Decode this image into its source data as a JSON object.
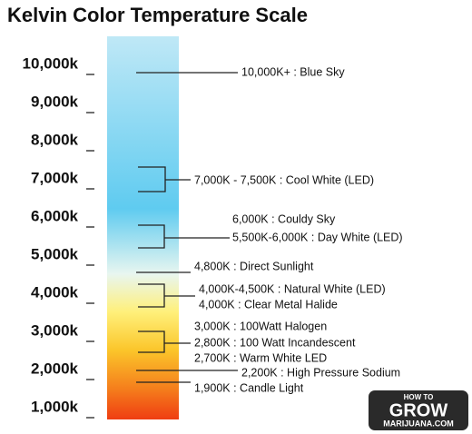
{
  "title": "Kelvin Color Temperature Scale",
  "scale": {
    "ticks": [
      "10,000k",
      "9,000k",
      "8,000k",
      "7,000k",
      "6,000k",
      "5,000k",
      "4,000k",
      "3,000k",
      "2,000k",
      "1,000k"
    ]
  },
  "annotations": [
    {
      "lines": [
        "10,000K+ : Blue Sky"
      ]
    },
    {
      "lines": [
        "7,000K - 7,500K : Cool White (LED)"
      ]
    },
    {
      "lines": [
        "6,000K : Couldy Sky",
        "5,500K-6,000K : Day White (LED)"
      ]
    },
    {
      "lines": [
        "4,800K : Direct Sunlight"
      ]
    },
    {
      "lines": [
        "4,000K-4,500K : Natural White (LED)",
        "4,000K : Clear Metal Halide"
      ]
    },
    {
      "lines": [
        "3,000K : 100Watt Halogen",
        "2,800K : 100 Watt Incandescent",
        "2,700K : Warm White LED"
      ]
    },
    {
      "lines": [
        "2,200K : High Pressure Sodium"
      ]
    },
    {
      "lines": [
        "1,900K : Candle Light"
      ]
    }
  ],
  "logo": {
    "top": "HOW TO",
    "main": "GROW",
    "bottom": "MARIJUANA.COM"
  }
}
